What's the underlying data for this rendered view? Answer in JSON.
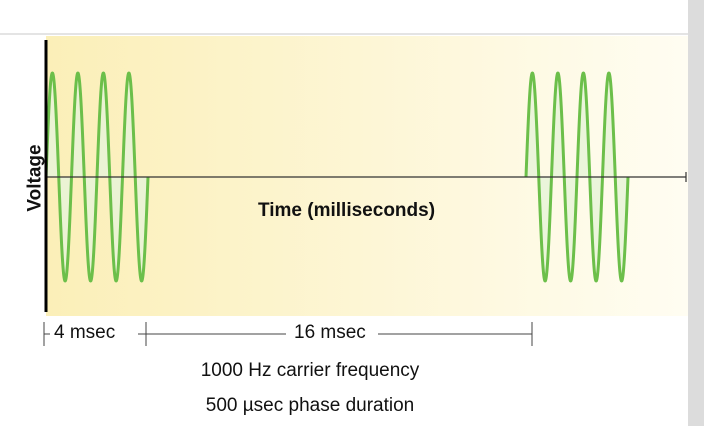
{
  "axes": {
    "y_label": "Voltage",
    "x_label": "Time (milliseconds)"
  },
  "dimensions": {
    "burst": "4 msec",
    "interburst": "16 msec"
  },
  "captions": {
    "carrier": "1000 Hz carrier frequency",
    "phase": "500 µsec phase duration"
  },
  "colors": {
    "waveform": "#6cbf4a",
    "waveform_fill": "#e8f3d8",
    "background_left": "#fbefb8",
    "background_right": "#fffdf2"
  }
}
